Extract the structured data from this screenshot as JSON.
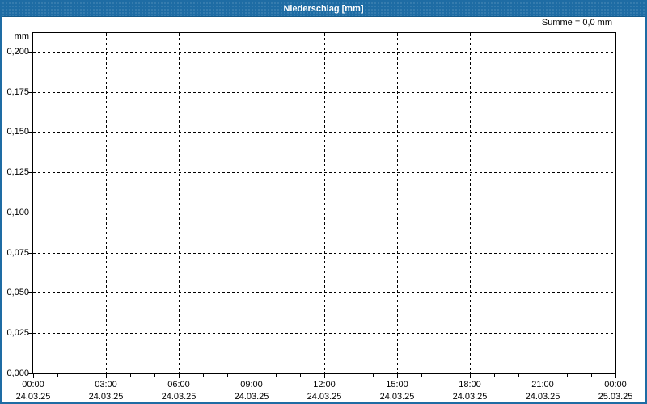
{
  "window": {
    "title": "Niederschlag [mm]"
  },
  "header": {
    "sum_label": "Summe = 0,0 mm"
  },
  "colors": {
    "titlebar_blue": "#1e6ca4",
    "border_blue": "#1e6ca4",
    "title_text": "#ffffff",
    "label_text": "#000000",
    "grid": "#000000",
    "background": "#ffffff"
  },
  "chart_data": {
    "type": "bar",
    "title": "Niederschlag [mm]",
    "xlabel": "",
    "ylabel": "mm",
    "sum_annotation": "Summe = 0,0 mm",
    "grid": "dashed",
    "legend": "none",
    "ylim": [
      0,
      0.2115
    ],
    "xlim_hours": [
      0,
      24
    ],
    "minor_x_tick_interval_hours": 1,
    "y_ticks": [
      {
        "value": 0.0,
        "label": "0,000"
      },
      {
        "value": 0.025,
        "label": "0,025"
      },
      {
        "value": 0.05,
        "label": "0,050"
      },
      {
        "value": 0.075,
        "label": "0,075"
      },
      {
        "value": 0.1,
        "label": "0,100"
      },
      {
        "value": 0.125,
        "label": "0,125"
      },
      {
        "value": 0.15,
        "label": "0,150"
      },
      {
        "value": 0.175,
        "label": "0,175"
      },
      {
        "value": 0.2,
        "label": "0,200"
      }
    ],
    "x_ticks": [
      {
        "hour": 0,
        "time": "00:00",
        "date": "24.03.25"
      },
      {
        "hour": 3,
        "time": "03:00",
        "date": "24.03.25"
      },
      {
        "hour": 6,
        "time": "06:00",
        "date": "24.03.25"
      },
      {
        "hour": 9,
        "time": "09:00",
        "date": "24.03.25"
      },
      {
        "hour": 12,
        "time": "12:00",
        "date": "24.03.25"
      },
      {
        "hour": 15,
        "time": "15:00",
        "date": "24.03.25"
      },
      {
        "hour": 18,
        "time": "18:00",
        "date": "24.03.25"
      },
      {
        "hour": 21,
        "time": "21:00",
        "date": "24.03.25"
      },
      {
        "hour": 24,
        "time": "00:00",
        "date": "25.03.25"
      }
    ],
    "series": [
      {
        "name": "Niederschlag",
        "values": [],
        "sum_mm": 0.0
      }
    ]
  }
}
